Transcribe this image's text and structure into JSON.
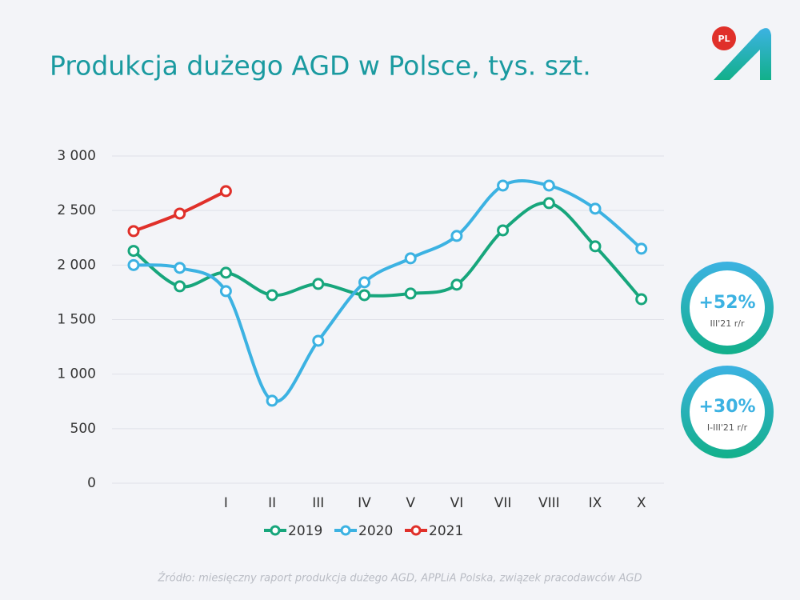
{
  "logo_text": "PL",
  "chart_data": {
    "type": "line",
    "title": "Produkcja dużego AGD w Polsce, tys. szt.",
    "categories": [
      null,
      null,
      "I",
      "II",
      "III",
      "IV",
      "V",
      "VI",
      "VII",
      "VIII",
      "IX",
      "X"
    ],
    "series": [
      {
        "name": "2019",
        "color": "#17a67c",
        "values": [
          2130,
          1805,
          1930,
          1724,
          1827,
          1724,
          1739,
          1820,
          2318,
          2568,
          2172,
          1687
        ]
      },
      {
        "name": "2020",
        "color": "#3cb2e2",
        "values": [
          2000,
          1974,
          1761,
          756,
          1306,
          1842,
          2062,
          2267,
          2729,
          2729,
          2517,
          2150
        ]
      },
      {
        "name": "2021",
        "color": "#e0302a",
        "values": [
          2311,
          2472,
          2678,
          null,
          null,
          null,
          null,
          null,
          null,
          null,
          null,
          null
        ]
      }
    ],
    "ylim": [
      0,
      3000
    ],
    "yticks": [
      0,
      500,
      {
        "value": 1000,
        "label": "1 000"
      },
      {
        "value": 1500,
        "label": "1 500"
      },
      {
        "value": 2000,
        "label": "2 000"
      },
      {
        "value": 2500,
        "label": "2 500"
      },
      {
        "value": 3000,
        "label": "3 000"
      }
    ],
    "grid": true,
    "annotations": [
      {
        "text": "+52%",
        "label": "III'21 r/r"
      },
      {
        "text": "+30%",
        "label": "I-III'21 r/r"
      }
    ],
    "source": "Źródło: miesięczny raport produkcja dużego AGD, APPLiA Polska, związek pracodawców AGD"
  }
}
